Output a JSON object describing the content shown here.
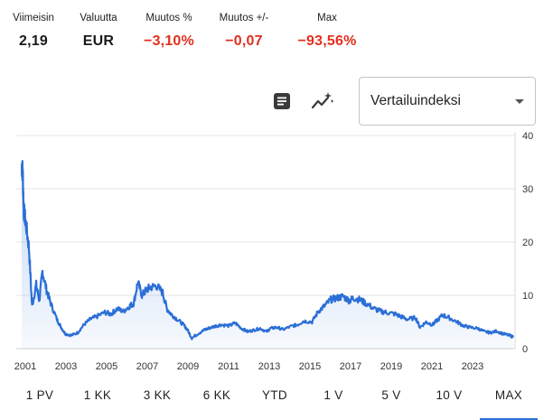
{
  "stats": [
    {
      "label": "Viimeisin",
      "value": "2,19",
      "negative": false
    },
    {
      "label": "Valuutta",
      "value": "EUR",
      "negative": false
    },
    {
      "label": "Muutos %",
      "value": "−3,10%",
      "negative": true
    },
    {
      "label": "Muutos +/-",
      "value": "−0,07",
      "negative": true
    },
    {
      "label": "Max",
      "value": "−93,56%",
      "negative": true
    }
  ],
  "toolbar": {
    "table_icon": "table-icon",
    "technical_icon": "technical-indicators-icon",
    "compare_label": "Vertailuindeksi"
  },
  "colors": {
    "line": "#2b6fd6",
    "negative": "#e0301e",
    "active_tab": "#2b6fd6"
  },
  "chart_data": {
    "type": "area",
    "xlabel": "",
    "ylabel": "",
    "x_ticks": [
      "2001",
      "2003",
      "2005",
      "2007",
      "2009",
      "2011",
      "2013",
      "2015",
      "2017",
      "2019",
      "2021",
      "2023"
    ],
    "y_ticks": [
      "0",
      "10",
      "20",
      "30",
      "40"
    ],
    "ylim": [
      0,
      40
    ],
    "xlim": [
      2001.0,
      2024.7
    ],
    "grid": true,
    "series": [
      {
        "x": [
          2001.0,
          2001.05,
          2001.1,
          2001.2,
          2001.35,
          2001.5,
          2001.7,
          2001.85,
          2002.0,
          2002.2,
          2002.4,
          2002.7,
          2002.9,
          2003.1,
          2003.4,
          2003.7,
          2004.0,
          2004.3,
          2004.6,
          2005.0,
          2005.3,
          2005.6,
          2005.9,
          2006.2,
          2006.4,
          2006.6,
          2006.8,
          2007.0,
          2007.2,
          2007.5,
          2007.8,
          2008.0,
          2008.2,
          2008.5,
          2008.8,
          2009.0,
          2009.2,
          2009.5,
          2009.8,
          2010.0,
          2010.3,
          2010.6,
          2011.0,
          2011.3,
          2011.6,
          2011.9,
          2012.2,
          2012.5,
          2012.8,
          2013.0,
          2013.3,
          2013.6,
          2014.0,
          2014.3,
          2014.6,
          2015.0,
          2015.3,
          2015.6,
          2015.9,
          2016.2,
          2016.5,
          2016.8,
          2017.0,
          2017.3,
          2017.6,
          2018.0,
          2018.3,
          2018.6,
          2019.0,
          2019.3,
          2019.6,
          2020.0,
          2020.2,
          2020.5,
          2020.8,
          2021.0,
          2021.3,
          2021.6,
          2022.0,
          2022.3,
          2022.6,
          2023.0,
          2023.3,
          2023.6,
          2023.9,
          2024.2,
          2024.5,
          2024.7
        ],
        "values": [
          34.5,
          33.0,
          26.0,
          23.5,
          19.0,
          8.0,
          12.0,
          9.0,
          14.5,
          11.0,
          8.5,
          5.5,
          4.0,
          2.8,
          2.5,
          3.0,
          4.5,
          5.5,
          6.0,
          6.8,
          6.5,
          7.5,
          7.0,
          8.0,
          8.5,
          12.5,
          10.0,
          11.0,
          11.5,
          11.8,
          10.5,
          7.5,
          6.5,
          5.5,
          4.5,
          3.5,
          2.0,
          2.8,
          3.5,
          3.8,
          4.2,
          4.5,
          4.3,
          4.8,
          3.8,
          3.2,
          3.5,
          3.8,
          3.2,
          3.8,
          4.0,
          3.6,
          4.2,
          4.5,
          5.2,
          5.0,
          7.0,
          8.0,
          9.2,
          9.5,
          9.8,
          9.0,
          9.5,
          9.2,
          8.5,
          7.5,
          7.0,
          6.8,
          6.5,
          6.0,
          5.5,
          5.8,
          4.0,
          5.0,
          4.5,
          5.2,
          6.3,
          5.8,
          5.0,
          4.3,
          4.0,
          3.8,
          3.2,
          3.0,
          3.3,
          2.8,
          2.5,
          2.2
        ]
      }
    ]
  },
  "tabs": [
    {
      "label": "1 PV",
      "active": false
    },
    {
      "label": "1 KK",
      "active": false
    },
    {
      "label": "3 KK",
      "active": false
    },
    {
      "label": "6 KK",
      "active": false
    },
    {
      "label": "YTD",
      "active": false
    },
    {
      "label": "1 V",
      "active": false
    },
    {
      "label": "5 V",
      "active": false
    },
    {
      "label": "10 V",
      "active": false
    },
    {
      "label": "MAX",
      "active": true
    }
  ]
}
